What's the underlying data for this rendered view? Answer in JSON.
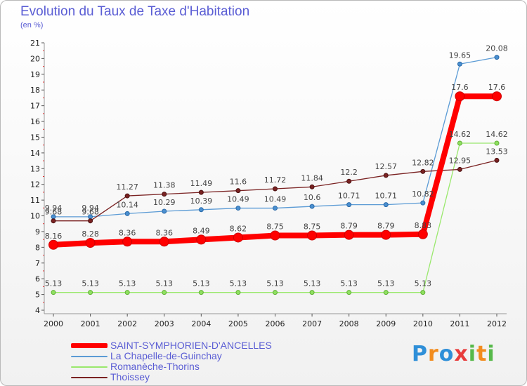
{
  "title": "Evolution du Taux de Taxe d'Habitation",
  "subtitle": "(en %)",
  "brand": {
    "text": "Proxiti",
    "letters": [
      {
        "ch": "P",
        "color": "#2f8fd8"
      },
      {
        "ch": "r",
        "color": "#f28c1e"
      },
      {
        "ch": "o",
        "color": "#2f8fd8"
      },
      {
        "ch": "x",
        "color": "#e83c3c"
      },
      {
        "ch": "i",
        "color": "#57b94a"
      },
      {
        "ch": "t",
        "color": "#f28c1e"
      },
      {
        "ch": "i",
        "color": "#57b94a"
      }
    ]
  },
  "chart_data": {
    "type": "line",
    "title": "Evolution du Taux de Taxe d'Habitation",
    "ylabel": "(en %)",
    "xlabel": "",
    "x": [
      "2000",
      "2001",
      "2002",
      "2003",
      "2004",
      "2005",
      "2006",
      "2007",
      "2008",
      "2009",
      "2010",
      "2011",
      "2012"
    ],
    "ylim": [
      4,
      21
    ],
    "yticks": [
      "4",
      "5",
      "6",
      "7",
      "8",
      "9",
      "10",
      "11",
      "12",
      "13",
      "14",
      "15",
      "16",
      "17",
      "18",
      "19",
      "20",
      "21"
    ],
    "grid": false,
    "legend_position": "bottom-left",
    "series": [
      {
        "name": "SAINT-SYMPHORIEN-D'ANCELLES",
        "color": "#ff0000",
        "values": [
          8.16,
          8.28,
          8.36,
          8.36,
          8.49,
          8.62,
          8.75,
          8.75,
          8.79,
          8.79,
          8.83,
          17.6,
          17.6
        ],
        "labels": [
          "8.16",
          "8.28",
          "8.36",
          "8.36",
          "8.49",
          "8.62",
          "8.75",
          "8.75",
          "8.79",
          "8.79",
          "8.83",
          "17.6",
          "17.6"
        ]
      },
      {
        "name": "La Chapelle-de-Guinchay",
        "color": "#5b9bd5",
        "values": [
          9.94,
          9.94,
          10.14,
          10.29,
          10.39,
          10.49,
          10.49,
          10.6,
          10.71,
          10.71,
          10.82,
          19.65,
          20.08
        ],
        "labels": [
          "9.94",
          "9.94",
          "10.14",
          "10.29",
          "10.39",
          "10.49",
          "10.49",
          "10.6",
          "10.71",
          "10.71",
          "10.82",
          "19.65",
          "20.08"
        ]
      },
      {
        "name": "Romanèche-Thorins",
        "color": "#99e86c",
        "values": [
          5.13,
          5.13,
          5.13,
          5.13,
          5.13,
          5.13,
          5.13,
          5.13,
          5.13,
          5.13,
          5.13,
          14.62,
          14.62
        ],
        "labels": [
          "5.13",
          "5.13",
          "5.13",
          "5.13",
          "5.13",
          "5.13",
          "5.13",
          "5.13",
          "5.13",
          "5.13",
          "5.13",
          "14.62",
          "14.62"
        ]
      },
      {
        "name": "Thoissey",
        "color": "#7a2222",
        "values": [
          9.68,
          9.68,
          11.27,
          11.38,
          11.49,
          11.6,
          11.72,
          11.84,
          12.2,
          12.57,
          12.82,
          12.95,
          13.53
        ],
        "labels": [
          "9.68",
          "9.68",
          "11.27",
          "11.38",
          "11.49",
          "11.6",
          "11.72",
          "11.84",
          "12.2",
          "12.57",
          "12.82",
          "12.95",
          "13.53"
        ]
      }
    ]
  }
}
